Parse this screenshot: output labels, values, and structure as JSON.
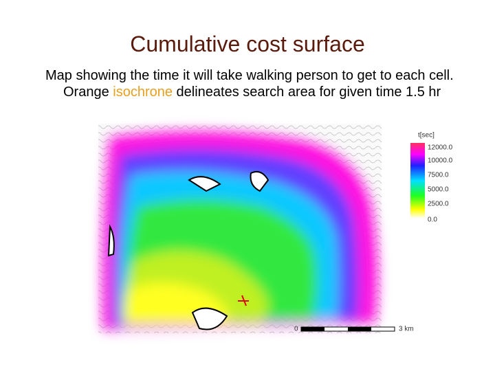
{
  "header": {
    "title": "Cumulative cost surface"
  },
  "body": {
    "before": "Map showing the time it will take walking person to get to each cell. Orange ",
    "highlight": "isochrone",
    "after": " delineates search area for given time 1.5 hr"
  },
  "legend": {
    "title": "t[sec]",
    "labels": [
      "12000.0",
      "10000.0",
      "7500.0",
      "5000.0",
      "2500.0",
      "0.0"
    ]
  },
  "scale": {
    "start": "0",
    "end": "3 km"
  }
}
